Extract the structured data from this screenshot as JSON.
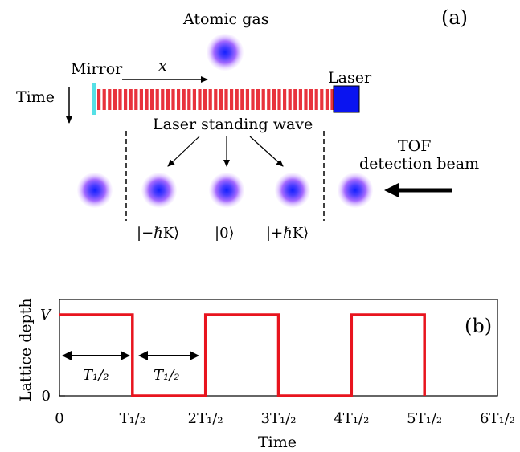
{
  "panel_a": {
    "panel_label": "(a)",
    "atomic_gas_label": "Atomic gas",
    "mirror_label": "Mirror",
    "x_label": "x",
    "laser_label": "Laser",
    "time_label": "Time",
    "standing_wave_label": "Laser standing wave",
    "tof_label_line1": "TOF",
    "tof_label_line2": "detection beam",
    "state_labels": [
      "|−ℏK⟩",
      "|0⟩",
      "|+ℏK⟩"
    ],
    "colors": {
      "mirror": "#55e0e6",
      "standing_wave": "#e8323c",
      "laser": "#0a14f0",
      "atom_core": "#1420ff",
      "atom_halo": "#c77dff"
    }
  },
  "panel_b": {
    "panel_label": "(b)",
    "ylabel": "Lattice depth",
    "xlabel": "Time",
    "y_tick_labels": [
      "0",
      "V"
    ],
    "x_tick_labels": [
      "0",
      "T₁/₂",
      "2T₁/₂",
      "3T₁/₂",
      "4T₁/₂",
      "5T₁/₂",
      "6T₁/₂"
    ],
    "interval_labels": [
      "T₁/₂",
      "T₁/₂"
    ],
    "line_color": "#e8141e"
  },
  "chart_data": {
    "type": "line",
    "x_unit": "T_1/2",
    "ylabel": "Lattice depth",
    "xlabel": "Time",
    "xlim": [
      0,
      6
    ],
    "ylim": [
      0,
      1.1
    ],
    "y_value_labels": {
      "0": "0",
      "1": "V"
    },
    "series": [
      {
        "x": [
          0,
          1,
          1,
          2,
          2,
          3,
          3,
          4,
          4,
          5,
          5
        ],
        "y": [
          1,
          1,
          0,
          0,
          1,
          1,
          0,
          0,
          1,
          1,
          0
        ]
      }
    ]
  }
}
